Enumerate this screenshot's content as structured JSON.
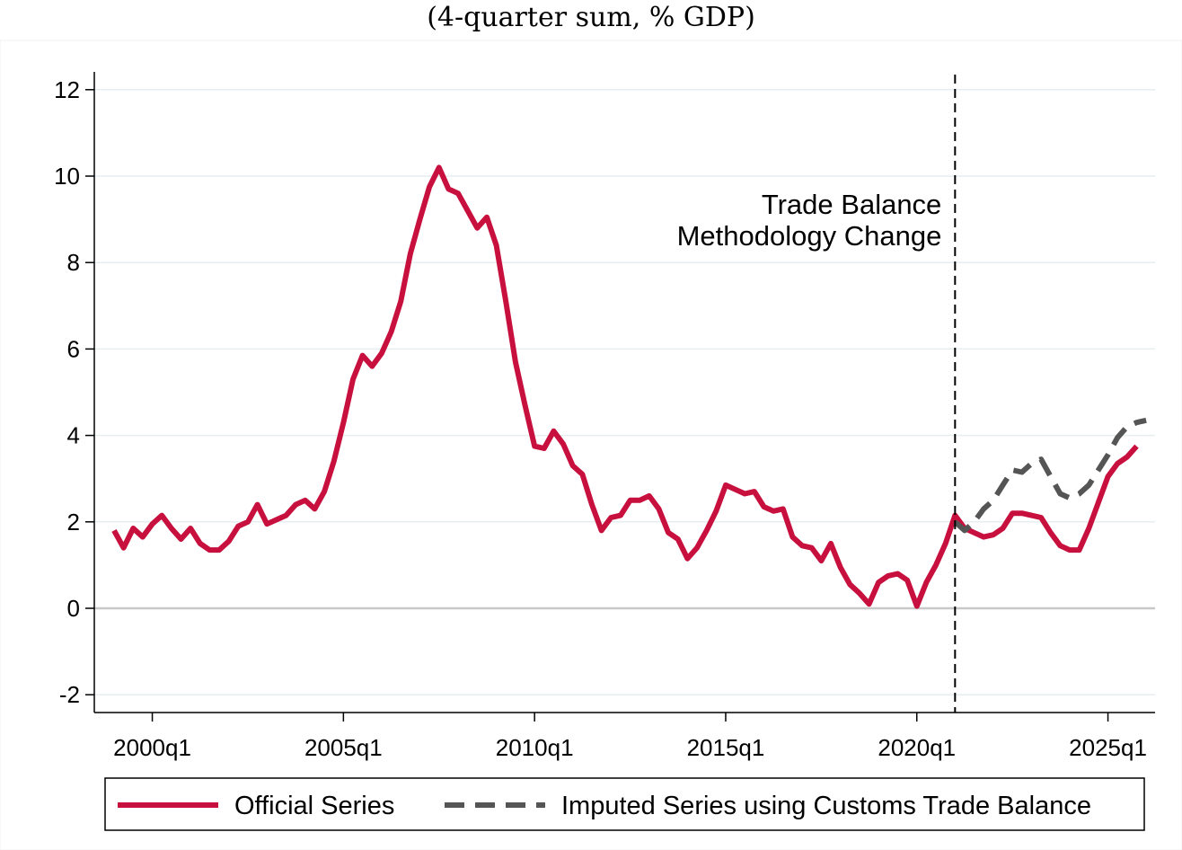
{
  "subtitle": "(4-quarter sum, % GDP)",
  "chart_data": {
    "type": "line",
    "title": "",
    "subtitle": "(4-quarter sum, % GDP)",
    "xlabel": "",
    "ylabel": "",
    "ylim": [
      -2.2,
      12.3
    ],
    "yticks": [
      -2,
      0,
      2,
      4,
      6,
      8,
      10,
      12
    ],
    "xticks": [
      "2000q1",
      "2005q1",
      "2010q1",
      "2015q1",
      "2020q1",
      "2025q1"
    ],
    "grid": true,
    "legend_position": "bottom",
    "x_start": "1999q1",
    "annotation": {
      "text_line1": "Trade Balance",
      "text_line2": "Methodology Change",
      "x": "2021q1"
    },
    "series": [
      {
        "name": "Official Series",
        "color": "#c8103e",
        "style": "solid",
        "x_start": "1999q1",
        "values": [
          1.8,
          1.4,
          1.85,
          1.65,
          1.95,
          2.15,
          1.85,
          1.6,
          1.85,
          1.5,
          1.35,
          1.35,
          1.55,
          1.9,
          2.0,
          2.4,
          1.95,
          2.05,
          2.15,
          2.4,
          2.5,
          2.3,
          2.7,
          3.4,
          4.3,
          5.3,
          5.85,
          5.6,
          5.9,
          6.4,
          7.1,
          8.2,
          9.0,
          9.75,
          10.2,
          9.7,
          9.6,
          9.2,
          8.8,
          9.05,
          8.4,
          7.1,
          5.7,
          4.7,
          3.75,
          3.7,
          4.1,
          3.8,
          3.3,
          3.1,
          2.4,
          1.8,
          2.1,
          2.15,
          2.5,
          2.5,
          2.6,
          2.3,
          1.75,
          1.6,
          1.15,
          1.4,
          1.8,
          2.25,
          2.85,
          2.75,
          2.65,
          2.7,
          2.35,
          2.25,
          2.3,
          1.65,
          1.45,
          1.4,
          1.1,
          1.5,
          0.95,
          0.55,
          0.35,
          0.1,
          0.6,
          0.75,
          0.8,
          0.65,
          0.05,
          0.6,
          1.0,
          1.5,
          2.15,
          1.85,
          1.75,
          1.65,
          1.7,
          1.85,
          2.2,
          2.2,
          2.15,
          2.1,
          1.75,
          1.45,
          1.35,
          1.35,
          1.85,
          2.45,
          3.05,
          3.35,
          3.5,
          3.75
        ]
      },
      {
        "name": "Imputed Series using Customs Trade Balance",
        "color": "#555555",
        "style": "dashed",
        "x_start": "2021q1",
        "values": [
          2.0,
          1.8,
          2.0,
          2.3,
          2.5,
          2.85,
          3.2,
          3.15,
          3.35,
          3.45,
          3.05,
          2.65,
          2.55,
          2.65,
          2.85,
          3.2,
          3.55,
          3.95,
          4.2,
          4.3,
          4.35
        ]
      }
    ]
  }
}
